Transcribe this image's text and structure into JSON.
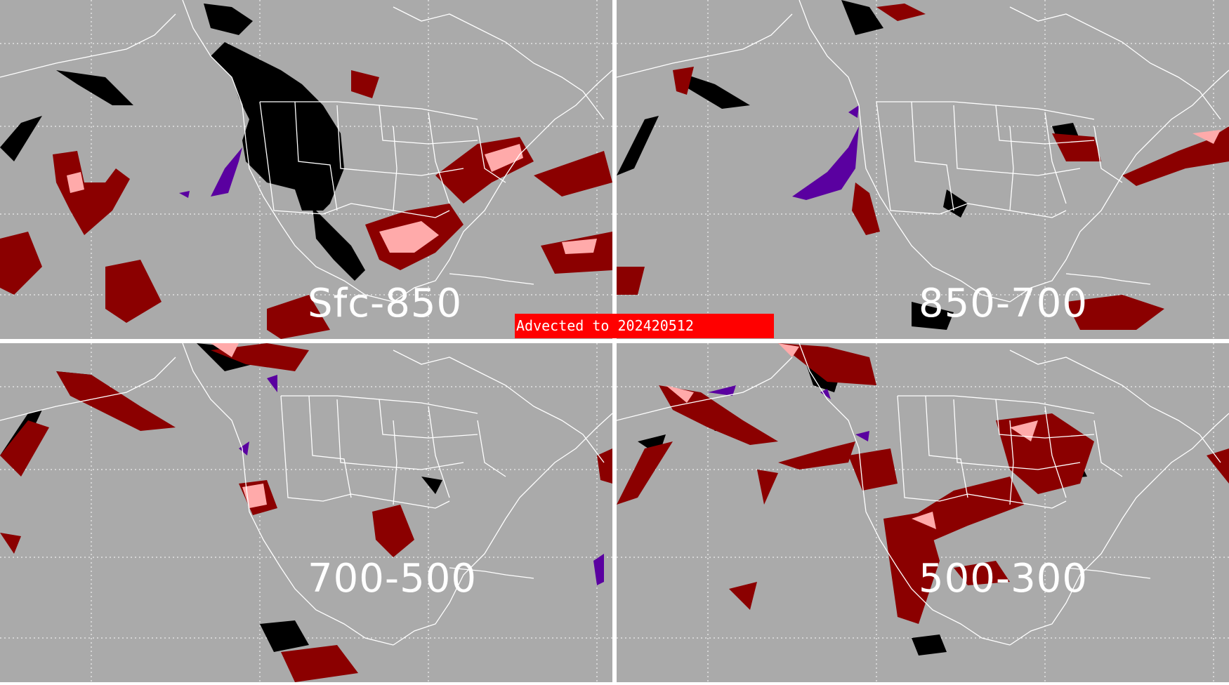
{
  "banner": {
    "text": "Advected to  202420512",
    "color": "#ff0000"
  },
  "colors": {
    "background": "#aaaaaa",
    "map_lines": "#ffffff",
    "dark_red": "#8b0000",
    "pink": "#ffaaaa",
    "black": "#000000",
    "purple": "#5a00a0"
  },
  "panels": [
    {
      "label": "Sfc-850"
    },
    {
      "label": "850-700"
    },
    {
      "label": "700-500"
    },
    {
      "label": "500-300"
    }
  ]
}
